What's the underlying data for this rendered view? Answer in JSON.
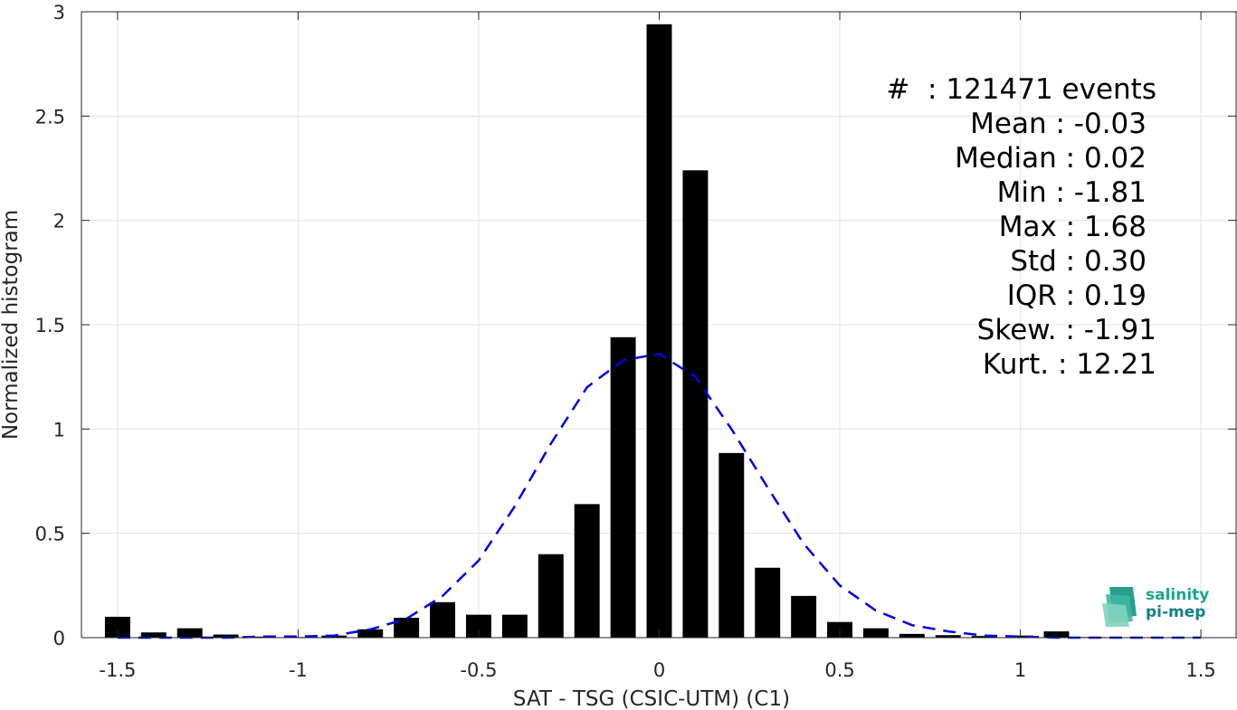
{
  "chart_data": {
    "type": "bar",
    "xlabel": "SAT - TSG (CSIC-UTM) (C1)",
    "ylabel": "Normalized histogram",
    "xlim": [
      -1.6,
      1.6
    ],
    "ylim": [
      0,
      3
    ],
    "xticks": [
      -1.5,
      -1,
      -0.5,
      0,
      0.5,
      1,
      1.5
    ],
    "xtick_labels": [
      "-1.5",
      "-1",
      "-0.5",
      "0",
      "0.5",
      "1",
      "1.5"
    ],
    "yticks": [
      0,
      0.5,
      1,
      1.5,
      2,
      2.5,
      3
    ],
    "ytick_labels": [
      "0",
      "0.5",
      "1",
      "1.5",
      "2",
      "2.5",
      "3"
    ],
    "grid": true,
    "bar_width": 0.07,
    "bars": {
      "x": [
        -1.5,
        -1.4,
        -1.3,
        -1.2,
        -1.1,
        -1.0,
        -0.9,
        -0.8,
        -0.7,
        -0.6,
        -0.5,
        -0.4,
        -0.3,
        -0.2,
        -0.1,
        0.0,
        0.1,
        0.2,
        0.3,
        0.4,
        0.5,
        0.6,
        0.7,
        0.8,
        0.9,
        1.0,
        1.1,
        1.2,
        1.3,
        1.4,
        1.5
      ],
      "values": [
        0.1,
        0.025,
        0.045,
        0.015,
        0.005,
        0.003,
        0.01,
        0.04,
        0.095,
        0.17,
        0.11,
        0.11,
        0.4,
        0.64,
        1.44,
        2.94,
        2.24,
        0.885,
        0.335,
        0.2,
        0.075,
        0.045,
        0.018,
        0.012,
        0.008,
        0.01,
        0.03,
        0.003,
        0.002,
        0.002,
        0.002
      ]
    },
    "fit_curve": {
      "style": "dashed",
      "color": "#0000e6",
      "x": [
        -1.5,
        -1.4,
        -1.3,
        -1.2,
        -1.1,
        -1.0,
        -0.9,
        -0.8,
        -0.7,
        -0.6,
        -0.5,
        -0.4,
        -0.3,
        -0.2,
        -0.1,
        0.0,
        0.1,
        0.2,
        0.3,
        0.4,
        0.5,
        0.6,
        0.7,
        0.8,
        0.9,
        1.0,
        1.1,
        1.2,
        1.3,
        1.4,
        1.5
      ],
      "y": [
        0.0,
        0.0,
        0.0,
        0.0,
        0.005,
        0.005,
        0.01,
        0.04,
        0.09,
        0.2,
        0.37,
        0.63,
        0.93,
        1.2,
        1.33,
        1.36,
        1.25,
        1.0,
        0.72,
        0.45,
        0.25,
        0.13,
        0.06,
        0.03,
        0.01,
        0.005,
        0.0,
        0.0,
        0.0,
        0.0,
        0.0
      ]
    },
    "bar_color": "#000000"
  },
  "stats": [
    "#  : 121471 events",
    "Mean : -0.03",
    "Median : 0.02",
    "Min : -1.81",
    "Max : 1.68",
    "Std : 0.30",
    "IQR : 0.19",
    "Skew. : -1.91",
    "Kurt. : 12.21"
  ],
  "logo": {
    "line1": "salinity",
    "line2": "pi-mep"
  }
}
